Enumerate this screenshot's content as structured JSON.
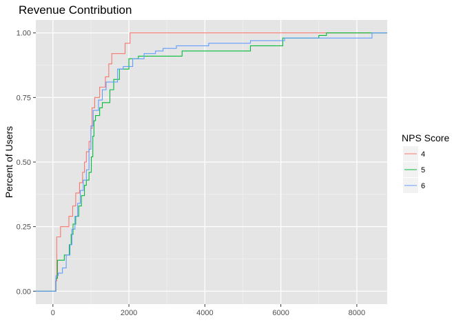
{
  "chart_data": {
    "type": "line",
    "step": true,
    "title": "Revenue Contribution",
    "xlabel": "",
    "ylabel": "Percent of Users",
    "xlim": [
      -450,
      8800
    ],
    "ylim": [
      -0.05,
      1.05
    ],
    "x_ticks": [
      0,
      2000,
      4000,
      6000,
      8000
    ],
    "x_tick_labels": [
      "0",
      "2000",
      "4000",
      "6000",
      "8000"
    ],
    "y_ticks": [
      0,
      0.25,
      0.5,
      0.75,
      1.0
    ],
    "y_tick_labels": [
      "0.00",
      "0.25",
      "0.50",
      "0.75",
      "1.00"
    ],
    "grid": true,
    "background": "#e5e5e5",
    "legend": {
      "title": "NPS Score",
      "position": "right"
    },
    "series": [
      {
        "name": "4",
        "color": "#f8766d",
        "points": [
          [
            -450,
            0
          ],
          [
            70,
            0
          ],
          [
            70,
            0.04
          ],
          [
            100,
            0.04
          ],
          [
            100,
            0.21
          ],
          [
            200,
            0.21
          ],
          [
            200,
            0.25
          ],
          [
            420,
            0.25
          ],
          [
            420,
            0.29
          ],
          [
            520,
            0.29
          ],
          [
            520,
            0.33
          ],
          [
            600,
            0.33
          ],
          [
            600,
            0.38
          ],
          [
            700,
            0.38
          ],
          [
            700,
            0.42
          ],
          [
            780,
            0.42
          ],
          [
            780,
            0.46
          ],
          [
            830,
            0.46
          ],
          [
            830,
            0.5
          ],
          [
            880,
            0.5
          ],
          [
            880,
            0.54
          ],
          [
            950,
            0.54
          ],
          [
            950,
            0.58
          ],
          [
            1000,
            0.58
          ],
          [
            1000,
            0.63
          ],
          [
            1030,
            0.63
          ],
          [
            1030,
            0.71
          ],
          [
            1100,
            0.71
          ],
          [
            1100,
            0.75
          ],
          [
            1230,
            0.75
          ],
          [
            1230,
            0.79
          ],
          [
            1380,
            0.79
          ],
          [
            1380,
            0.83
          ],
          [
            1470,
            0.83
          ],
          [
            1470,
            0.88
          ],
          [
            1550,
            0.88
          ],
          [
            1550,
            0.92
          ],
          [
            1900,
            0.92
          ],
          [
            1900,
            0.96
          ],
          [
            2030,
            0.96
          ],
          [
            2030,
            1.0
          ],
          [
            8800,
            1.0
          ]
        ]
      },
      {
        "name": "5",
        "color": "#00ba38",
        "points": [
          [
            -450,
            0
          ],
          [
            80,
            0
          ],
          [
            80,
            0.05
          ],
          [
            120,
            0.05
          ],
          [
            120,
            0.12
          ],
          [
            300,
            0.12
          ],
          [
            300,
            0.14
          ],
          [
            430,
            0.14
          ],
          [
            430,
            0.18
          ],
          [
            480,
            0.18
          ],
          [
            480,
            0.22
          ],
          [
            530,
            0.22
          ],
          [
            530,
            0.26
          ],
          [
            600,
            0.26
          ],
          [
            600,
            0.29
          ],
          [
            680,
            0.29
          ],
          [
            680,
            0.33
          ],
          [
            750,
            0.33
          ],
          [
            750,
            0.37
          ],
          [
            830,
            0.37
          ],
          [
            830,
            0.41
          ],
          [
            880,
            0.41
          ],
          [
            880,
            0.43
          ],
          [
            950,
            0.43
          ],
          [
            950,
            0.46
          ],
          [
            1010,
            0.46
          ],
          [
            1010,
            0.52
          ],
          [
            1050,
            0.52
          ],
          [
            1050,
            0.6
          ],
          [
            1080,
            0.6
          ],
          [
            1080,
            0.66
          ],
          [
            1120,
            0.66
          ],
          [
            1120,
            0.68
          ],
          [
            1230,
            0.68
          ],
          [
            1230,
            0.71
          ],
          [
            1300,
            0.71
          ],
          [
            1300,
            0.73
          ],
          [
            1500,
            0.73
          ],
          [
            1500,
            0.78
          ],
          [
            1600,
            0.78
          ],
          [
            1600,
            0.82
          ],
          [
            1750,
            0.82
          ],
          [
            1750,
            0.86
          ],
          [
            2000,
            0.86
          ],
          [
            2000,
            0.9
          ],
          [
            2250,
            0.9
          ],
          [
            2250,
            0.91
          ],
          [
            3400,
            0.91
          ],
          [
            3400,
            0.93
          ],
          [
            5200,
            0.93
          ],
          [
            5200,
            0.95
          ],
          [
            6050,
            0.95
          ],
          [
            6050,
            0.98
          ],
          [
            7000,
            0.98
          ],
          [
            7000,
            0.99
          ],
          [
            7200,
            0.99
          ],
          [
            7200,
            1.0
          ],
          [
            8800,
            1.0
          ]
        ]
      },
      {
        "name": "6",
        "color": "#619cff",
        "points": [
          [
            -450,
            0
          ],
          [
            80,
            0
          ],
          [
            80,
            0.06
          ],
          [
            140,
            0.06
          ],
          [
            140,
            0.07
          ],
          [
            250,
            0.07
          ],
          [
            250,
            0.09
          ],
          [
            350,
            0.09
          ],
          [
            350,
            0.14
          ],
          [
            450,
            0.14
          ],
          [
            450,
            0.18
          ],
          [
            500,
            0.18
          ],
          [
            500,
            0.24
          ],
          [
            580,
            0.24
          ],
          [
            580,
            0.29
          ],
          [
            650,
            0.29
          ],
          [
            650,
            0.34
          ],
          [
            720,
            0.34
          ],
          [
            720,
            0.39
          ],
          [
            800,
            0.39
          ],
          [
            800,
            0.43
          ],
          [
            880,
            0.43
          ],
          [
            880,
            0.47
          ],
          [
            950,
            0.47
          ],
          [
            950,
            0.55
          ],
          [
            1000,
            0.55
          ],
          [
            1000,
            0.64
          ],
          [
            1060,
            0.64
          ],
          [
            1060,
            0.7
          ],
          [
            1200,
            0.7
          ],
          [
            1200,
            0.74
          ],
          [
            1300,
            0.74
          ],
          [
            1300,
            0.78
          ],
          [
            1400,
            0.78
          ],
          [
            1400,
            0.81
          ],
          [
            1700,
            0.81
          ],
          [
            1700,
            0.86
          ],
          [
            1850,
            0.86
          ],
          [
            1850,
            0.87
          ],
          [
            2100,
            0.87
          ],
          [
            2100,
            0.9
          ],
          [
            2400,
            0.9
          ],
          [
            2400,
            0.92
          ],
          [
            2700,
            0.92
          ],
          [
            2700,
            0.93
          ],
          [
            2900,
            0.93
          ],
          [
            2900,
            0.94
          ],
          [
            3250,
            0.94
          ],
          [
            3250,
            0.95
          ],
          [
            4100,
            0.95
          ],
          [
            4100,
            0.96
          ],
          [
            5200,
            0.96
          ],
          [
            5200,
            0.97
          ],
          [
            6100,
            0.97
          ],
          [
            6100,
            0.98
          ],
          [
            8400,
            0.98
          ],
          [
            8400,
            1.0
          ],
          [
            8800,
            1.0
          ]
        ]
      }
    ]
  }
}
